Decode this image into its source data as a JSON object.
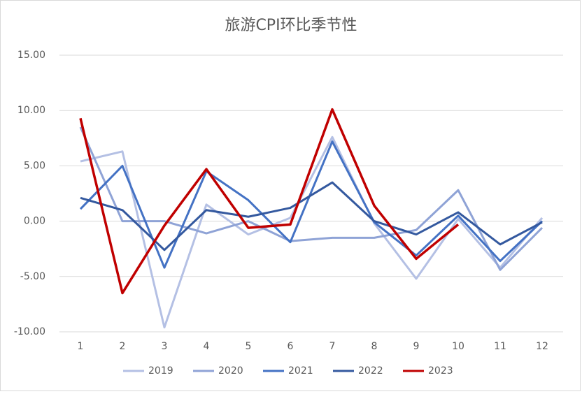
{
  "chart_data": {
    "type": "line",
    "title": "旅游CPI环比季节性",
    "categories": [
      "1",
      "2",
      "3",
      "4",
      "5",
      "6",
      "7",
      "8",
      "9",
      "10",
      "11",
      "12"
    ],
    "series": [
      {
        "name": "2019",
        "color": "#b4c0e4",
        "values": [
          5.4,
          6.3,
          -9.6,
          1.5,
          -1.2,
          0.3,
          7.6,
          -0.2,
          -5.2,
          0.2,
          -4.2,
          0.3
        ]
      },
      {
        "name": "2020",
        "color": "#8fa3d6",
        "values": [
          8.5,
          0,
          0,
          -1.1,
          0,
          -1.8,
          -1.5,
          -1.5,
          -0.8,
          2.8,
          -4.4,
          -0.6
        ]
      },
      {
        "name": "2021",
        "color": "#4472c4",
        "values": [
          1.1,
          5.0,
          -4.2,
          4.5,
          1.9,
          -1.9,
          7.2,
          -0.1,
          -3.1,
          0.5,
          -3.6,
          0
        ]
      },
      {
        "name": "2022",
        "color": "#34599f",
        "values": [
          2.1,
          1.0,
          -2.6,
          1.0,
          0.4,
          1.2,
          3.5,
          0,
          -1.2,
          0.8,
          -2.1,
          -0.1
        ]
      },
      {
        "name": "2023",
        "color": "#c00000",
        "values": [
          9.3,
          -6.5,
          -0.4,
          4.7,
          -0.6,
          -0.3,
          10.1,
          1.4,
          -3.4,
          -0.3,
          null,
          null
        ]
      }
    ],
    "ylim": [
      -10,
      15
    ],
    "yticks": [
      {
        "value": -10,
        "label": "-10.00"
      },
      {
        "value": -5,
        "label": "-5.00"
      },
      {
        "value": 0,
        "label": "0.00"
      },
      {
        "value": 5,
        "label": "5.00"
      },
      {
        "value": 10,
        "label": "10.00"
      },
      {
        "value": 15,
        "label": "15.00"
      }
    ],
    "grid": true,
    "legend": "bottom"
  }
}
